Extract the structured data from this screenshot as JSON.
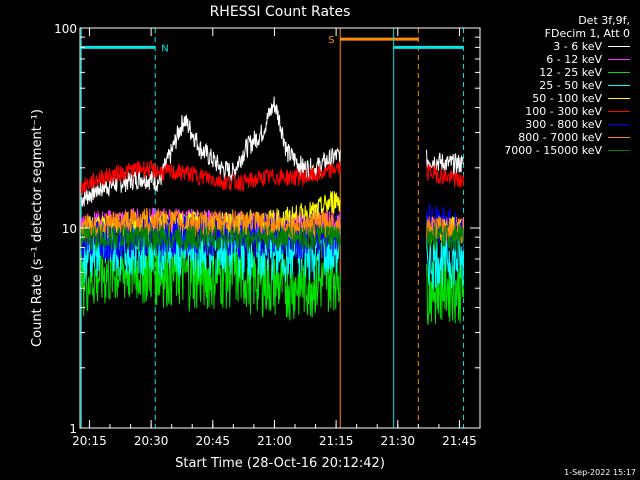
{
  "colors": {
    "background": "#000000",
    "axes": "#ffffff",
    "attenuator_marker": "#00e5e5",
    "saa_marker": "#ff8c00"
  },
  "header": {
    "det_line": "Det 3f,9f,",
    "decim_line": "FDecim 1, Att 0"
  },
  "timestamp": "1-Sep-2022 15:17",
  "chart_data": {
    "type": "line",
    "title": "RHESSI Count Rates",
    "xlabel": "Start Time (28-Oct-16 20:12:42)",
    "ylabel": "Count Rate (s⁻¹ detector segment⁻¹)",
    "x_unit": "time of day (HH:MM) on 28-Oct-2016",
    "xlim": [
      "20:12:42",
      "21:50:00"
    ],
    "ylim": [
      1,
      100
    ],
    "yscale": "log",
    "x_ticks": [
      "20:15",
      "20:30",
      "20:45",
      "21:00",
      "21:15",
      "21:30",
      "21:45"
    ],
    "y_ticks": [
      {
        "value": 1,
        "label": "1"
      },
      {
        "value": 10,
        "label": "10"
      },
      {
        "value": 100,
        "label": "100"
      }
    ],
    "legend_position": "top-right",
    "data_gap": [
      "21:16",
      "21:37"
    ],
    "series": [
      {
        "name": "3 - 6 keV",
        "color": "#ffffff",
        "x": [
          "20:13",
          "20:18",
          "20:23",
          "20:28",
          "20:32",
          "20:35",
          "20:38",
          "20:42",
          "20:47",
          "20:50",
          "20:53",
          "20:57",
          "21:00",
          "21:03",
          "21:07",
          "21:10",
          "21:15",
          "21:38",
          "21:42",
          "21:46"
        ],
        "y": [
          14,
          16,
          17,
          18,
          17,
          24,
          35,
          25,
          20,
          19,
          25,
          30,
          42,
          24,
          20,
          20,
          23,
          22,
          21,
          21
        ]
      },
      {
        "name": "6 - 12 keV",
        "color": "#ff33ff",
        "x": [
          "20:13",
          "20:25",
          "20:37",
          "20:50",
          "21:02",
          "21:15",
          "21:38",
          "21:46"
        ],
        "y": [
          10.5,
          11,
          11,
          10.5,
          10.5,
          11,
          10,
          10
        ]
      },
      {
        "name": "12 - 25 keV",
        "color": "#00e000",
        "x": [
          "20:13",
          "20:20",
          "20:28",
          "20:35",
          "20:42",
          "20:50",
          "20:57",
          "21:05",
          "21:12",
          "21:15",
          "21:38",
          "21:42",
          "21:46"
        ],
        "y": [
          5.5,
          6.0,
          6.3,
          6.0,
          5.8,
          6.0,
          5.5,
          5.2,
          5.5,
          6.0,
          5.0,
          5.2,
          5.0
        ]
      },
      {
        "name": "25 - 50 keV",
        "color": "#00ffff",
        "x": [
          "20:13",
          "20:20",
          "20:28",
          "20:35",
          "20:42",
          "20:50",
          "20:57",
          "21:05",
          "21:12",
          "21:15",
          "21:38",
          "21:42",
          "21:46"
        ],
        "y": [
          7.5,
          8.0,
          8.2,
          8.0,
          7.8,
          8.0,
          7.5,
          7.5,
          7.8,
          8.0,
          7.0,
          7.2,
          6.8
        ]
      },
      {
        "name": "50 - 100 keV",
        "color": "#ffff00",
        "x": [
          "20:13",
          "20:25",
          "20:37",
          "20:50",
          "21:02",
          "21:10",
          "21:15",
          "21:38",
          "21:46"
        ],
        "y": [
          10,
          10.5,
          10.5,
          10.5,
          11,
          12,
          14,
          10,
          10
        ]
      },
      {
        "name": "100 - 300 keV",
        "color": "#ff0000",
        "x": [
          "20:13",
          "20:18",
          "20:23",
          "20:28",
          "20:33",
          "20:38",
          "20:43",
          "20:48",
          "20:53",
          "20:58",
          "21:03",
          "21:08",
          "21:13",
          "21:15",
          "21:38",
          "21:42",
          "21:46"
        ],
        "y": [
          16,
          18,
          19,
          20,
          19,
          19,
          18,
          17,
          17,
          18,
          18,
          18,
          19,
          20,
          19,
          18,
          17
        ]
      },
      {
        "name": "300 - 800 keV",
        "color": "#0000ff",
        "x": [
          "20:13",
          "20:25",
          "20:37",
          "20:50",
          "21:02",
          "21:15",
          "21:38",
          "21:46"
        ],
        "y": [
          9,
          9.3,
          9.5,
          9.3,
          9.2,
          9.5,
          11,
          9.5
        ]
      },
      {
        "name": "800 - 7000 keV",
        "color": "#ff8c00",
        "x": [
          "20:13",
          "20:20",
          "20:28",
          "20:35",
          "20:42",
          "20:50",
          "20:57",
          "21:05",
          "21:12",
          "21:15",
          "21:38",
          "21:42",
          "21:46"
        ],
        "y": [
          10,
          10.5,
          11,
          10.8,
          10.5,
          10.8,
          10.5,
          10.2,
          10.5,
          10.5,
          10,
          10,
          9.8
        ]
      },
      {
        "name": "7000 - 15000 keV",
        "color": "#008000",
        "x": [
          "20:13",
          "20:30",
          "20:50",
          "21:15",
          "21:38",
          "21:46"
        ],
        "y": [
          9,
          9,
          9,
          9,
          9,
          9
        ]
      }
    ],
    "markers": [
      {
        "label": "N",
        "color": "#00e5e5",
        "start": "20:13",
        "end": "20:31",
        "level": 80
      },
      {
        "label": "S",
        "color": "#ff8c00",
        "start": "21:16",
        "end": "21:35",
        "level": 88
      },
      {
        "label": "",
        "color": "#00e5e5",
        "start": "21:29",
        "end": "21:46",
        "level": 80
      }
    ]
  }
}
